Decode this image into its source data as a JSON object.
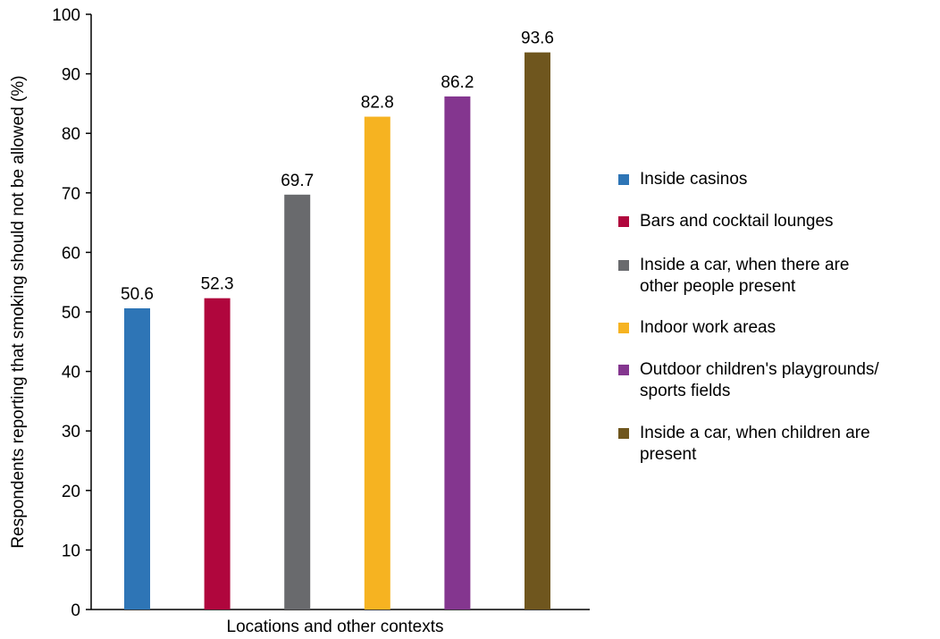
{
  "chart_data": {
    "type": "bar",
    "title": "",
    "xlabel": "Locations and other contexts",
    "ylabel": "Respondents reporting that smoking should not be allowed (%)",
    "ylim": [
      0,
      100
    ],
    "yticks": [
      0,
      10,
      20,
      30,
      40,
      50,
      60,
      70,
      80,
      90,
      100
    ],
    "grid": false,
    "legend_position": "right",
    "categories": [
      "Inside casinos",
      "Bars and cocktail lounges",
      "Inside a car, when there are other people present",
      "Indoor work areas",
      "Outdoor children's playgrounds/ sports fields",
      "Inside a car, when children are present"
    ],
    "values": [
      50.6,
      52.3,
      69.7,
      82.8,
      86.2,
      93.6
    ],
    "value_labels": [
      "50.6",
      "52.3",
      "69.7",
      "82.8",
      "86.2",
      "93.6"
    ],
    "colors": [
      "#2e75b6",
      "#b0063d",
      "#696a6d",
      "#f6b321",
      "#84368f",
      "#6f561e"
    ]
  },
  "legend": {
    "items": [
      {
        "label_lines": [
          "Inside casinos"
        ],
        "color": "#2e75b6"
      },
      {
        "label_lines": [
          "Bars and cocktail lounges"
        ],
        "color": "#b0063d"
      },
      {
        "label_lines": [
          "Inside a car, when there are",
          "other people present"
        ],
        "color": "#696a6d"
      },
      {
        "label_lines": [
          "Indoor work areas"
        ],
        "color": "#f6b321"
      },
      {
        "label_lines": [
          "Outdoor children's playgrounds/",
          "sports fields"
        ],
        "color": "#84368f"
      },
      {
        "label_lines": [
          "Inside a car, when children are",
          "present"
        ],
        "color": "#6f561e"
      }
    ]
  }
}
